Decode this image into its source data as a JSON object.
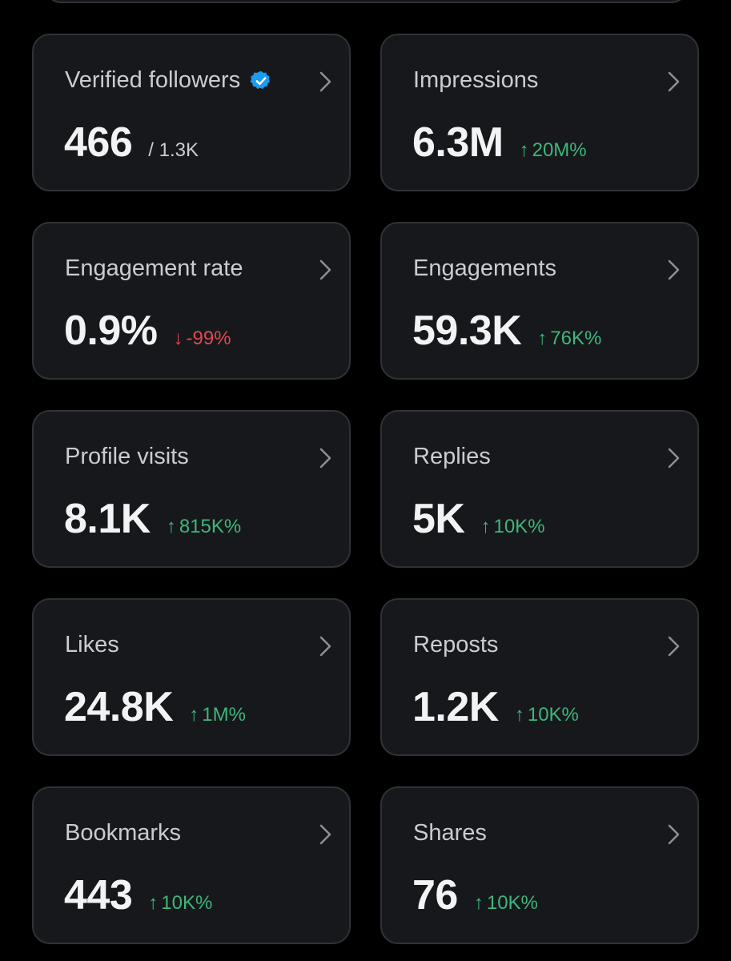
{
  "colors": {
    "background": "#000000",
    "card": "#16181c",
    "border": "#2f3336",
    "positive": "#3fb67a",
    "negative": "#e0484f",
    "verified": "#1d9bf0"
  },
  "metrics": [
    {
      "label": "Verified followers",
      "value": "466",
      "total": "/ 1.3K",
      "verified_icon": "verified-badge-icon"
    },
    {
      "label": "Impressions",
      "value": "6.3M",
      "arrow": "↑",
      "change": "20M%",
      "trend": "up"
    },
    {
      "label": "Engagement rate",
      "value": "0.9%",
      "arrow": "↓",
      "change": "-99%",
      "trend": "down"
    },
    {
      "label": "Engagements",
      "value": "59.3K",
      "arrow": "↑",
      "change": "76K%",
      "trend": "up"
    },
    {
      "label": "Profile visits",
      "value": "8.1K",
      "arrow": "↑",
      "change": "815K%",
      "trend": "up"
    },
    {
      "label": "Replies",
      "value": "5K",
      "arrow": "↑",
      "change": "10K%",
      "trend": "up"
    },
    {
      "label": "Likes",
      "value": "24.8K",
      "arrow": "↑",
      "change": "1M%",
      "trend": "up"
    },
    {
      "label": "Reposts",
      "value": "1.2K",
      "arrow": "↑",
      "change": "10K%",
      "trend": "up"
    },
    {
      "label": "Bookmarks",
      "value": "443",
      "arrow": "↑",
      "change": "10K%",
      "trend": "up"
    },
    {
      "label": "Shares",
      "value": "76",
      "arrow": "↑",
      "change": "10K%",
      "trend": "up"
    }
  ]
}
